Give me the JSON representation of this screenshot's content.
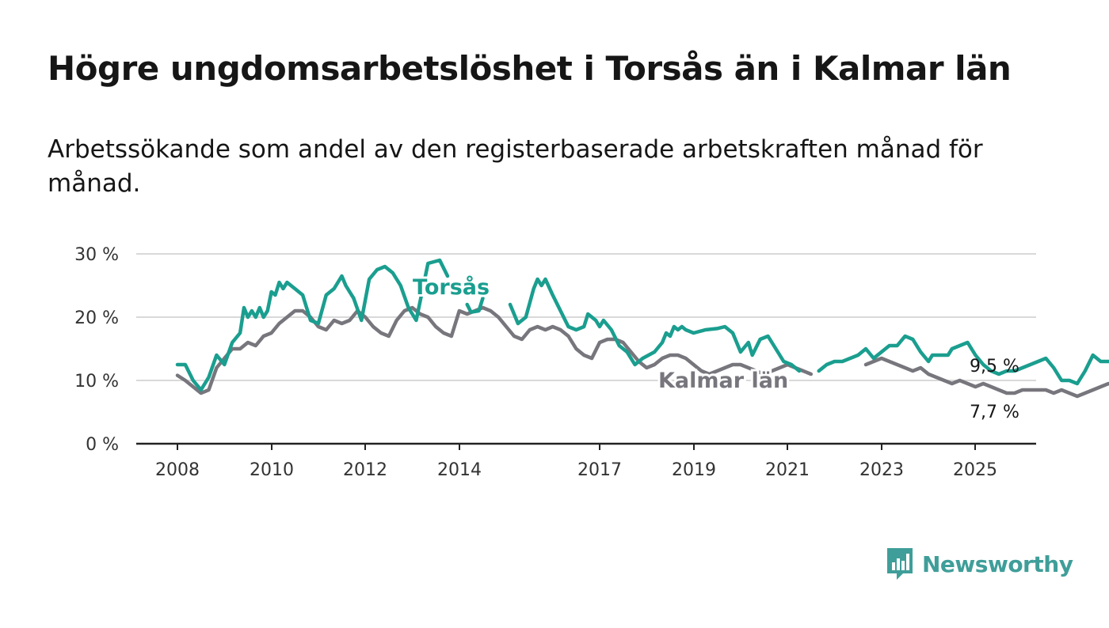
{
  "title": "Högre ungdomsarbetslöshet i Torsås än i Kalmar län",
  "subtitle": "Arbetssökande som andel av den registerbaserade arbetskraften månad för månad.",
  "brand": {
    "name": "Newsworthy",
    "color": "#3f9e99",
    "icon": "bar-chart-speech-bubble-icon"
  },
  "chart_data": {
    "type": "line",
    "title": "Högre ungdomsarbetslöshet i Torsås än i Kalmar län",
    "xlabel": "",
    "ylabel": "",
    "x_ticks": [
      "2008",
      "2010",
      "2012",
      "2014",
      "2017",
      "2019",
      "2021",
      "2023",
      "2025"
    ],
    "y_ticks": [
      "0 %",
      "10 %",
      "20 %",
      "30 %"
    ],
    "ylim": [
      0,
      30
    ],
    "xlim": [
      "2008-01",
      "2025-07"
    ],
    "grid": true,
    "legend": "inline labels",
    "series": [
      {
        "name": "Torsås",
        "color": "#1a9e8f",
        "end_label": "9,5 %",
        "points": [
          [
            "2008-01",
            12.5
          ],
          [
            "2008-03",
            12.5
          ],
          [
            "2008-05",
            10.0
          ],
          [
            "2008-07",
            8.5
          ],
          [
            "2008-09",
            10.5
          ],
          [
            "2008-11",
            14.0
          ],
          [
            "2009-01",
            12.5
          ],
          [
            "2009-03",
            16.0
          ],
          [
            "2009-05",
            17.5
          ],
          [
            "2009-06",
            21.5
          ],
          [
            "2009-07",
            20.0
          ],
          [
            "2009-08",
            21.0
          ],
          [
            "2009-09",
            20.0
          ],
          [
            "2009-10",
            21.5
          ],
          [
            "2009-11",
            20.0
          ],
          [
            "2009-12",
            21.0
          ],
          [
            "2010-01",
            24.0
          ],
          [
            "2010-02",
            23.5
          ],
          [
            "2010-03",
            25.5
          ],
          [
            "2010-04",
            24.5
          ],
          [
            "2010-05",
            25.5
          ],
          [
            "2010-06",
            25.0
          ],
          [
            "2010-07",
            24.5
          ],
          [
            "2010-09",
            23.5
          ],
          [
            "2010-11",
            19.5
          ],
          [
            "2011-01",
            19.0
          ],
          [
            "2011-03",
            23.5
          ],
          [
            "2011-05",
            24.5
          ],
          [
            "2011-06",
            25.5
          ],
          [
            "2011-07",
            26.5
          ],
          [
            "2011-08",
            25.0
          ],
          [
            "2011-09",
            24.0
          ],
          [
            "2011-10",
            23.0
          ],
          [
            "2011-12",
            19.5
          ],
          [
            "2012-02",
            26.0
          ],
          [
            "2012-04",
            27.5
          ],
          [
            "2012-06",
            28.0
          ],
          [
            "2012-08",
            27.0
          ],
          [
            "2012-10",
            25.0
          ],
          [
            "2012-12",
            21.5
          ],
          [
            "2013-02",
            19.5
          ],
          [
            "2013-05",
            28.5
          ],
          [
            "2013-08",
            29.0
          ],
          [
            "2013-10",
            26.5
          ]
        ],
        "points_b": [
          [
            "2014-03",
            22.0
          ],
          [
            "2014-04",
            20.8
          ],
          [
            "2014-06",
            21.0
          ],
          [
            "2014-07",
            23.0
          ]
        ],
        "points_c": [
          [
            "2015-02",
            22.0
          ],
          [
            "2015-04",
            19.0
          ],
          [
            "2015-06",
            20.0
          ],
          [
            "2015-08",
            24.5
          ],
          [
            "2015-09",
            26.0
          ],
          [
            "2015-10",
            25.0
          ],
          [
            "2015-11",
            26.0
          ],
          [
            "2016-01",
            23.5
          ],
          [
            "2016-03",
            21.0
          ],
          [
            "2016-05",
            18.5
          ],
          [
            "2016-07",
            18.0
          ],
          [
            "2016-09",
            18.5
          ],
          [
            "2016-10",
            20.5
          ],
          [
            "2016-12",
            19.5
          ],
          [
            "2017-01",
            18.5
          ],
          [
            "2017-02",
            19.5
          ],
          [
            "2017-04",
            18.0
          ],
          [
            "2017-06",
            15.5
          ],
          [
            "2017-08",
            14.5
          ],
          [
            "2017-10",
            12.5
          ],
          [
            "2017-12",
            13.5
          ],
          [
            "2018-03",
            14.5
          ],
          [
            "2018-05",
            16.0
          ],
          [
            "2018-06",
            17.5
          ],
          [
            "2018-07",
            17.0
          ],
          [
            "2018-08",
            18.5
          ],
          [
            "2018-09",
            18.0
          ],
          [
            "2018-10",
            18.5
          ],
          [
            "2018-11",
            18.0
          ],
          [
            "2019-01",
            17.5
          ],
          [
            "2019-04",
            18.0
          ],
          [
            "2019-07",
            18.2
          ],
          [
            "2019-09",
            18.5
          ],
          [
            "2019-11",
            17.5
          ],
          [
            "2020-01",
            14.5
          ],
          [
            "2020-03",
            16.0
          ],
          [
            "2020-04",
            14.0
          ],
          [
            "2020-06",
            16.5
          ],
          [
            "2020-08",
            17.0
          ],
          [
            "2020-10",
            15.0
          ],
          [
            "2020-12",
            13.0
          ],
          [
            "2021-02",
            12.5
          ],
          [
            "2021-04",
            11.5
          ]
        ],
        "points_d": [
          [
            "2021-09",
            11.5
          ],
          [
            "2021-11",
            12.5
          ],
          [
            "2022-01",
            13.0
          ],
          [
            "2022-03",
            13.0
          ],
          [
            "2022-05",
            13.5
          ],
          [
            "2022-07",
            14.0
          ],
          [
            "2022-09",
            15.0
          ],
          [
            "2022-11",
            13.5
          ],
          [
            "2023-01",
            14.5
          ],
          [
            "2023-03",
            15.5
          ],
          [
            "2023-05",
            15.5
          ],
          [
            "2023-07",
            17.0
          ],
          [
            "2023-09",
            16.5
          ],
          [
            "2023-11",
            14.5
          ],
          [
            "2024-01",
            13.0
          ],
          [
            "2024-02",
            14.0
          ],
          [
            "2024-04",
            14.0
          ],
          [
            "2024-06",
            14.0
          ],
          [
            "2024-07",
            15.0
          ],
          [
            "2024-09",
            15.5
          ],
          [
            "2024-11",
            16.0
          ],
          [
            "2025-01",
            14.0
          ],
          [
            "2025-03",
            12.5
          ],
          [
            "2025-05",
            11.5
          ],
          [
            "2025-07",
            11.0
          ],
          [
            "2025-09",
            11.5
          ],
          [
            "2025-11",
            11.5
          ],
          [
            "2026-01",
            12.0
          ],
          [
            "2026-03",
            12.5
          ],
          [
            "2026-05",
            13.0
          ],
          [
            "2026-07",
            13.5
          ],
          [
            "2026-09",
            12.0
          ],
          [
            "2026-11",
            10.0
          ],
          [
            "2027-01",
            10.0
          ],
          [
            "2027-03",
            9.5
          ],
          [
            "2027-05",
            11.5
          ],
          [
            "2027-07",
            14.0
          ],
          [
            "2027-09",
            13.0
          ],
          [
            "2027-11",
            13.0
          ],
          [
            "2028-01",
            13.0
          ],
          [
            "2028-02",
            14.5
          ],
          [
            "2028-04",
            13.5
          ],
          [
            "2028-06",
            11.5
          ],
          [
            "2028-08",
            12.5
          ],
          [
            "2028-10",
            13.0
          ],
          [
            "2028-12",
            12.5
          ],
          [
            "2029-01",
            10.5
          ],
          [
            "2029-02",
            11.5
          ],
          [
            "2029-03",
            10.0
          ]
        ],
        "points_e": [
          [
            "2029-05",
            10.5
          ],
          [
            "2029-07",
            10.0
          ],
          [
            "2029-09",
            9.5
          ]
        ]
      },
      {
        "name": "Kalmar län",
        "color": "#78767d",
        "end_label": "7,7 %",
        "points": [
          [
            "2008-01",
            10.8
          ],
          [
            "2008-03",
            10.0
          ],
          [
            "2008-05",
            9.0
          ],
          [
            "2008-07",
            8.0
          ],
          [
            "2008-09",
            8.5
          ],
          [
            "2008-11",
            12.0
          ],
          [
            "2009-01",
            13.5
          ],
          [
            "2009-03",
            15.0
          ],
          [
            "2009-05",
            15.0
          ],
          [
            "2009-07",
            16.0
          ],
          [
            "2009-09",
            15.5
          ],
          [
            "2009-11",
            17.0
          ],
          [
            "2010-01",
            17.5
          ],
          [
            "2010-03",
            19.0
          ],
          [
            "2010-05",
            20.0
          ],
          [
            "2010-07",
            21.0
          ],
          [
            "2010-09",
            21.0
          ],
          [
            "2010-11",
            20.0
          ],
          [
            "2011-01",
            18.5
          ],
          [
            "2011-03",
            18.0
          ],
          [
            "2011-05",
            19.5
          ],
          [
            "2011-07",
            19.0
          ],
          [
            "2011-09",
            19.5
          ],
          [
            "2011-11",
            21.0
          ],
          [
            "2012-01",
            20.0
          ],
          [
            "2012-03",
            18.5
          ],
          [
            "2012-05",
            17.5
          ],
          [
            "2012-07",
            17.0
          ],
          [
            "2012-09",
            19.5
          ],
          [
            "2012-11",
            21.0
          ],
          [
            "2013-01",
            21.5
          ],
          [
            "2013-03",
            20.5
          ],
          [
            "2013-05",
            20.0
          ],
          [
            "2013-07",
            18.5
          ],
          [
            "2013-09",
            17.5
          ],
          [
            "2013-11",
            17.0
          ],
          [
            "2014-01",
            21.0
          ],
          [
            "2014-03",
            20.5
          ],
          [
            "2014-05",
            21.0
          ],
          [
            "2014-07",
            21.5
          ],
          [
            "2014-09",
            21.0
          ],
          [
            "2014-11",
            20.0
          ],
          [
            "2015-01",
            18.5
          ],
          [
            "2015-03",
            17.0
          ],
          [
            "2015-05",
            16.5
          ],
          [
            "2015-07",
            18.0
          ],
          [
            "2015-09",
            18.5
          ],
          [
            "2015-11",
            18.0
          ],
          [
            "2016-01",
            18.5
          ],
          [
            "2016-03",
            18.0
          ],
          [
            "2016-05",
            17.0
          ],
          [
            "2016-07",
            15.0
          ],
          [
            "2016-09",
            14.0
          ],
          [
            "2016-11",
            13.5
          ],
          [
            "2017-01",
            16.0
          ],
          [
            "2017-03",
            16.5
          ],
          [
            "2017-05",
            16.5
          ],
          [
            "2017-07",
            16.0
          ],
          [
            "2017-09",
            14.5
          ],
          [
            "2017-11",
            13.0
          ],
          [
            "2018-01",
            12.0
          ],
          [
            "2018-03",
            12.5
          ],
          [
            "2018-05",
            13.5
          ],
          [
            "2018-07",
            14.0
          ],
          [
            "2018-09",
            14.0
          ],
          [
            "2018-11",
            13.5
          ],
          [
            "2019-01",
            12.5
          ],
          [
            "2019-03",
            11.5
          ],
          [
            "2019-05",
            11.0
          ],
          [
            "2019-07",
            11.5
          ],
          [
            "2019-09",
            12.0
          ],
          [
            "2019-11",
            12.5
          ],
          [
            "2020-01",
            12.5
          ],
          [
            "2020-03",
            12.0
          ],
          [
            "2020-05",
            11.5
          ],
          [
            "2020-07",
            11.0
          ],
          [
            "2020-09",
            11.5
          ],
          [
            "2020-11",
            12.0
          ],
          [
            "2021-01",
            12.5
          ],
          [
            "2021-03",
            12.0
          ],
          [
            "2021-05",
            11.5
          ],
          [
            "2021-07",
            11.0
          ]
        ],
        "points_b": [
          [
            "2022-09",
            12.5
          ],
          [
            "2022-11",
            13.0
          ],
          [
            "2023-01",
            13.5
          ],
          [
            "2023-03",
            13.0
          ],
          [
            "2023-05",
            12.5
          ],
          [
            "2023-07",
            12.0
          ],
          [
            "2023-09",
            11.5
          ],
          [
            "2023-11",
            12.0
          ],
          [
            "2024-01",
            11.0
          ],
          [
            "2024-03",
            10.5
          ],
          [
            "2024-05",
            10.0
          ],
          [
            "2024-07",
            9.5
          ],
          [
            "2024-09",
            10.0
          ],
          [
            "2024-11",
            9.5
          ],
          [
            "2025-01",
            9.0
          ],
          [
            "2025-03",
            9.5
          ],
          [
            "2025-05",
            9.0
          ],
          [
            "2025-07",
            8.5
          ],
          [
            "2025-09",
            8.0
          ],
          [
            "2025-11",
            8.0
          ],
          [
            "2026-01",
            8.5
          ],
          [
            "2026-03",
            8.5
          ],
          [
            "2026-05",
            8.5
          ],
          [
            "2026-07",
            8.5
          ],
          [
            "2026-09",
            8.0
          ],
          [
            "2026-11",
            8.5
          ],
          [
            "2027-01",
            8.0
          ],
          [
            "2027-03",
            7.5
          ],
          [
            "2027-05",
            8.0
          ],
          [
            "2027-07",
            8.5
          ],
          [
            "2027-09",
            9.0
          ],
          [
            "2027-11",
            9.5
          ],
          [
            "2028-01",
            9.0
          ],
          [
            "2028-03",
            9.0
          ],
          [
            "2028-05",
            8.5
          ],
          [
            "2028-07",
            7.5
          ],
          [
            "2028-09",
            7.0
          ],
          [
            "2028-11",
            8.5
          ],
          [
            "2029-01",
            9.5
          ],
          [
            "2029-03",
            9.0
          ],
          [
            "2029-05",
            9.5
          ],
          [
            "2029-07",
            8.5
          ],
          [
            "2029-09",
            7.7
          ]
        ]
      }
    ]
  }
}
